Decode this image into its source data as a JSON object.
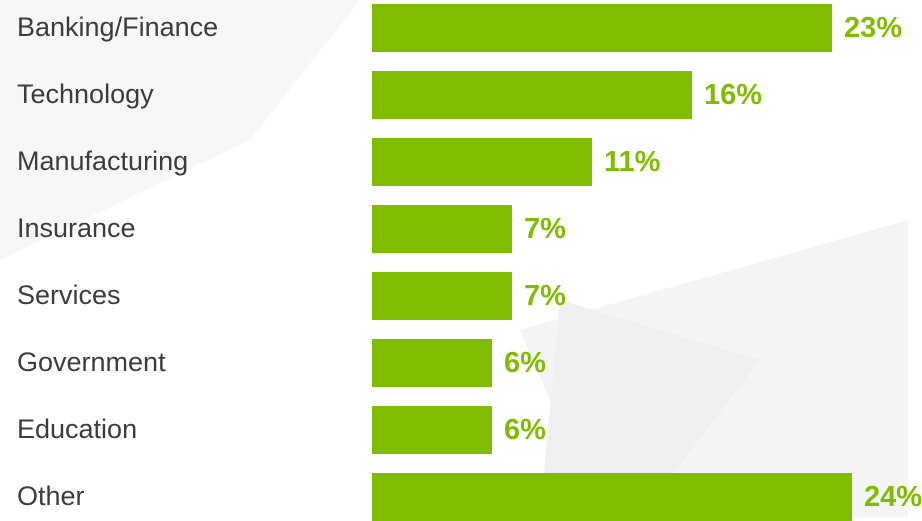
{
  "chart_data": {
    "type": "bar",
    "orientation": "horizontal",
    "categories": [
      "Banking/Finance",
      "Technology",
      "Manufacturing",
      "Insurance",
      "Services",
      "Government",
      "Education",
      "Other"
    ],
    "values": [
      23,
      16,
      11,
      7,
      7,
      6,
      6,
      24
    ],
    "value_labels": [
      "23%",
      "16%",
      "11%",
      "7%",
      "7%",
      "6%",
      "6%",
      "24%"
    ],
    "title": "",
    "xlabel": "",
    "ylabel": "",
    "grid": false,
    "legend": "none",
    "bar_color": "#80bd00",
    "label_color": "#80bd00",
    "text_color": "#3c3c3c"
  }
}
